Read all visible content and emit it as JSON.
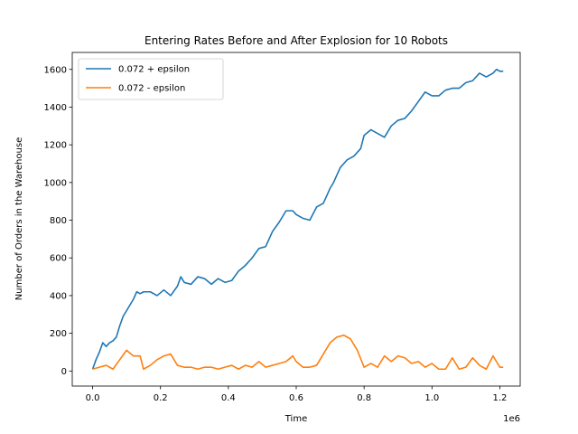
{
  "chart_data": {
    "type": "line",
    "title": "Entering Rates Before and After Explosion for 10 Robots",
    "xlabel": "Time",
    "ylabel": "Number of Orders in the Warehouse",
    "x_offset_label": "1e6",
    "xlim": [
      -0.06,
      1.26
    ],
    "ylim": [
      -80,
      1690
    ],
    "xticks": [
      0.0,
      0.2,
      0.4,
      0.6,
      0.8,
      1.0,
      1.2
    ],
    "xtick_labels": [
      "0.0",
      "0.2",
      "0.4",
      "0.6",
      "0.8",
      "1.0",
      "1.2"
    ],
    "yticks": [
      0,
      200,
      400,
      600,
      800,
      1000,
      1200,
      1400,
      1600
    ],
    "ytick_labels": [
      "0",
      "200",
      "400",
      "600",
      "800",
      "1000",
      "1200",
      "1400",
      "1600"
    ],
    "grid": false,
    "legend_position": "upper-left",
    "series": [
      {
        "name": "0.072 + epsilon",
        "color": "#1f77b4",
        "x": [
          0.0,
          0.01,
          0.02,
          0.03,
          0.04,
          0.05,
          0.06,
          0.07,
          0.08,
          0.09,
          0.1,
          0.12,
          0.13,
          0.14,
          0.15,
          0.17,
          0.19,
          0.21,
          0.23,
          0.25,
          0.26,
          0.27,
          0.29,
          0.31,
          0.33,
          0.35,
          0.37,
          0.39,
          0.41,
          0.43,
          0.45,
          0.47,
          0.49,
          0.51,
          0.53,
          0.55,
          0.57,
          0.59,
          0.6,
          0.62,
          0.64,
          0.66,
          0.68,
          0.7,
          0.71,
          0.73,
          0.75,
          0.77,
          0.79,
          0.8,
          0.82,
          0.84,
          0.86,
          0.88,
          0.9,
          0.92,
          0.94,
          0.96,
          0.98,
          1.0,
          1.02,
          1.04,
          1.06,
          1.08,
          1.1,
          1.12,
          1.14,
          1.16,
          1.18,
          1.19,
          1.2,
          1.21
        ],
        "y": [
          10,
          60,
          100,
          150,
          130,
          150,
          160,
          180,
          240,
          290,
          320,
          380,
          420,
          410,
          420,
          420,
          400,
          430,
          400,
          450,
          500,
          470,
          460,
          500,
          490,
          460,
          490,
          470,
          480,
          530,
          560,
          600,
          650,
          660,
          740,
          790,
          850,
          850,
          830,
          810,
          800,
          870,
          890,
          970,
          1000,
          1080,
          1120,
          1140,
          1180,
          1250,
          1280,
          1260,
          1240,
          1300,
          1330,
          1340,
          1380,
          1430,
          1480,
          1460,
          1460,
          1490,
          1500,
          1500,
          1530,
          1540,
          1580,
          1560,
          1580,
          1600,
          1590,
          1590
        ]
      },
      {
        "name": "0.072 - epsilon",
        "color": "#ff7f0e",
        "x": [
          0.0,
          0.02,
          0.04,
          0.06,
          0.08,
          0.1,
          0.12,
          0.14,
          0.15,
          0.17,
          0.19,
          0.21,
          0.23,
          0.25,
          0.27,
          0.29,
          0.31,
          0.33,
          0.35,
          0.37,
          0.39,
          0.41,
          0.43,
          0.45,
          0.47,
          0.49,
          0.51,
          0.53,
          0.55,
          0.57,
          0.59,
          0.6,
          0.62,
          0.64,
          0.66,
          0.68,
          0.7,
          0.72,
          0.74,
          0.76,
          0.78,
          0.8,
          0.82,
          0.84,
          0.86,
          0.88,
          0.9,
          0.92,
          0.94,
          0.96,
          0.98,
          1.0,
          1.02,
          1.04,
          1.06,
          1.08,
          1.1,
          1.12,
          1.14,
          1.16,
          1.18,
          1.2,
          1.21
        ],
        "y": [
          10,
          20,
          30,
          10,
          60,
          110,
          80,
          80,
          10,
          30,
          60,
          80,
          90,
          30,
          20,
          20,
          10,
          20,
          20,
          10,
          20,
          30,
          10,
          30,
          20,
          50,
          20,
          30,
          40,
          50,
          80,
          50,
          20,
          20,
          30,
          90,
          150,
          180,
          190,
          170,
          110,
          20,
          40,
          20,
          80,
          50,
          80,
          70,
          40,
          50,
          20,
          40,
          10,
          10,
          70,
          10,
          20,
          70,
          30,
          10,
          80,
          20,
          20
        ]
      }
    ]
  }
}
